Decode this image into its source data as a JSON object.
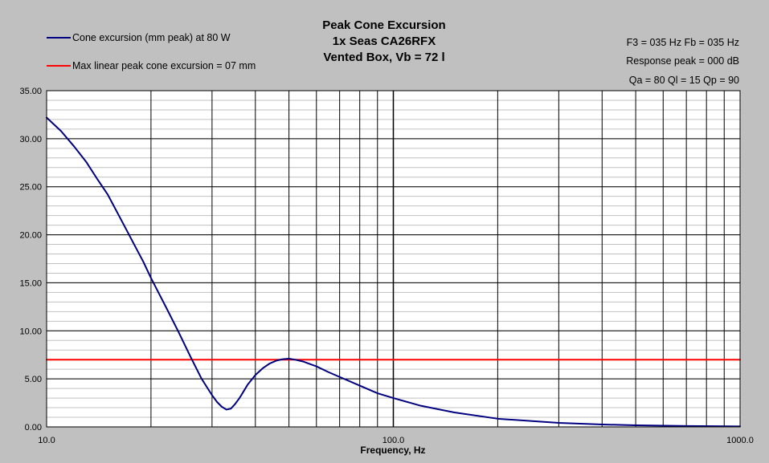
{
  "chart_data": {
    "type": "line",
    "title": [
      "Peak Cone Excursion",
      "1x Seas CA26RFX",
      "Vented Box, Vb = 72 l"
    ],
    "info": [
      "F3 = 035 Hz  Fb = 035 Hz",
      "Response peak = 000 dB",
      "Qa = 80  Ql = 15  Qp = 90"
    ],
    "xlabel": "Frequency, Hz",
    "ylabel": "",
    "xscale": "log",
    "xlim": [
      10,
      1000
    ],
    "ylim": [
      0,
      35
    ],
    "xticks": [
      10,
      100,
      1000
    ],
    "xtick_labels": [
      "10.0",
      "100.0",
      "1000.0"
    ],
    "yticks": [
      0,
      5,
      10,
      15,
      20,
      25,
      30,
      35
    ],
    "ytick_labels": [
      "0.00",
      "5.00",
      "10.00",
      "15.00",
      "20.00",
      "25.00",
      "30.00",
      "35.00"
    ],
    "grid": true,
    "legend_position": "top-left",
    "series": [
      {
        "name": "Cone excursion (mm peak) at 80 W",
        "color": "#000080",
        "x": [
          10,
          11,
          12,
          13,
          14,
          15,
          16,
          17,
          18,
          19,
          20,
          22,
          24,
          26,
          28,
          30,
          31,
          32,
          33,
          34,
          35,
          36,
          37,
          38,
          40,
          42,
          44,
          46,
          48,
          50,
          52,
          55,
          60,
          65,
          70,
          80,
          90,
          100,
          120,
          150,
          200,
          300,
          400,
          500,
          700,
          1000
        ],
        "y": [
          32.2,
          30.8,
          29.2,
          27.6,
          25.8,
          24.2,
          22.3,
          20.5,
          18.8,
          17.2,
          15.5,
          12.6,
          9.9,
          7.3,
          5.0,
          3.3,
          2.6,
          2.1,
          1.8,
          1.9,
          2.4,
          3.0,
          3.7,
          4.4,
          5.4,
          6.1,
          6.6,
          6.9,
          7.05,
          7.1,
          7.0,
          6.8,
          6.3,
          5.7,
          5.2,
          4.3,
          3.5,
          3.0,
          2.2,
          1.5,
          0.85,
          0.42,
          0.25,
          0.17,
          0.09,
          0.05
        ]
      },
      {
        "name": "Max linear peak cone excursion = 07 mm",
        "color": "#ff0000",
        "x": [
          10,
          1000
        ],
        "y": [
          7,
          7
        ]
      }
    ]
  }
}
